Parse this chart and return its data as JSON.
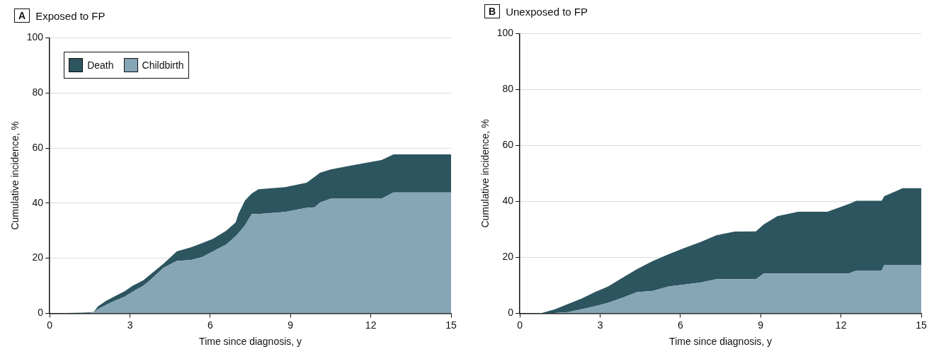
{
  "chart_data": [
    {
      "type": "area",
      "title": "Exposed to FP",
      "annotations": [
        "A"
      ],
      "xlabel": "Time since diagnosis, y",
      "ylabel": "Cumulative incidence, %",
      "stacked": true,
      "grid": "y",
      "legend": "top left",
      "xlim": [
        0,
        15
      ],
      "xticks": [
        0,
        3,
        6,
        9,
        12,
        15
      ],
      "ylim": [
        0,
        100
      ],
      "yticks": [
        0,
        20,
        40,
        60,
        80,
        100
      ],
      "x": [
        0,
        1.3,
        1.65,
        1.8,
        2.1,
        2.4,
        2.8,
        3.1,
        3.5,
        3.75,
        4.25,
        4.75,
        5.3,
        5.7,
        6.1,
        6.6,
        6.95,
        7.05,
        7.3,
        7.55,
        7.8,
        8.8,
        9.6,
        9.9,
        10.1,
        10.5,
        11.3,
        12.4,
        12.85,
        15
      ],
      "series": [
        {
          "name": "Childbirth",
          "color": "#86a5b5",
          "values": [
            0,
            0,
            0.3,
            1.5,
            3,
            4.4,
            6,
            7.8,
            10,
            12,
            16.5,
            19,
            19.4,
            20.4,
            22.5,
            25,
            28,
            29,
            32,
            36,
            36,
            36.8,
            38.3,
            38.5,
            40.2,
            41.6,
            41.6,
            41.6,
            43.9,
            43.9
          ]
        },
        {
          "name": "Death",
          "color": "#2d5560",
          "values": [
            0,
            0.2,
            0.2,
            1,
            1.5,
            1.6,
            2,
            2.2,
            2,
            2,
            1.5,
            3.5,
            4.6,
            5.1,
            4.5,
            5,
            5,
            7,
            9,
            7.5,
            9,
            9,
            9.1,
            11,
            10.8,
            10.6,
            12.1,
            14,
            13.8,
            13.8
          ]
        }
      ]
    },
    {
      "type": "area",
      "title": "Unexposed to FP",
      "annotations": [
        "B"
      ],
      "xlabel": "Time since diagnosis, y",
      "ylabel": "Cumulative incidence, %",
      "stacked": true,
      "grid": "y",
      "xlim": [
        0,
        15
      ],
      "xticks": [
        0,
        3,
        6,
        9,
        12,
        15
      ],
      "ylim": [
        0,
        100
      ],
      "yticks": [
        0,
        20,
        40,
        60,
        80,
        100
      ],
      "x": [
        0,
        0.82,
        1.31,
        1.8,
        2.3,
        2.8,
        3.3,
        3.8,
        4.38,
        4.97,
        5.56,
        6.16,
        6.75,
        7.34,
        8.03,
        8.82,
        9.12,
        9.62,
        10.4,
        11.49,
        12.28,
        12.58,
        13.52,
        13.62,
        14.3,
        15
      ],
      "series": [
        {
          "color": "#86a5b5",
          "values": [
            0,
            0,
            0.1,
            0.4,
            1.4,
            2.5,
            3.8,
            5.4,
            7.6,
            8,
            9.6,
            10.3,
            11,
            12.2,
            12.2,
            12.2,
            14.2,
            14.2,
            14.2,
            14.2,
            14.2,
            15.3,
            15.3,
            17.3,
            17.3,
            17.3
          ]
        },
        {
          "color": "#2d5560",
          "values": [
            0,
            0.1,
            1.3,
            2.9,
            3.8,
            5.1,
            5.8,
            7.1,
            8.2,
            10.7,
            11.5,
            13.1,
            14.5,
            15.7,
            17,
            17.1,
            17.6,
            20.5,
            22.1,
            22.1,
            24.8,
            24.9,
            24.9,
            24.6,
            27.4,
            27.4
          ]
        }
      ]
    }
  ]
}
